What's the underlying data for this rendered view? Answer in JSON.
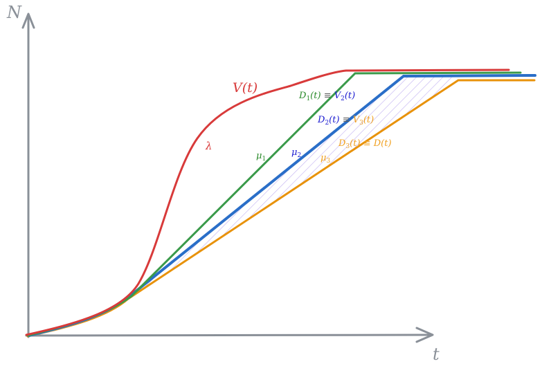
{
  "axes": {
    "y_label": "N",
    "x_label": "t"
  },
  "labels": {
    "V": "V(t)",
    "lambda": "λ",
    "mu1": "μ1",
    "mu2": "μ2",
    "mu3": "μ3",
    "D1_left": "D1(t)",
    "D1_right": "V2(t)",
    "D2_left": "D2(t)",
    "D2_right": "V3(t)",
    "D3_left": "D3(t)",
    "D3_right": "D(t)",
    "equiv": "≡"
  },
  "colors": {
    "axis": "#8a9098",
    "V": "#d83a3a",
    "D1": "#3a9a4a",
    "D2": "#2a6ec8",
    "D3": "#e8920a",
    "hatch": "#b9a6f0",
    "label_green": "#2a8a2a",
    "label_blue": "#1a1ad0",
    "label_orange": "#f0a020"
  }
}
